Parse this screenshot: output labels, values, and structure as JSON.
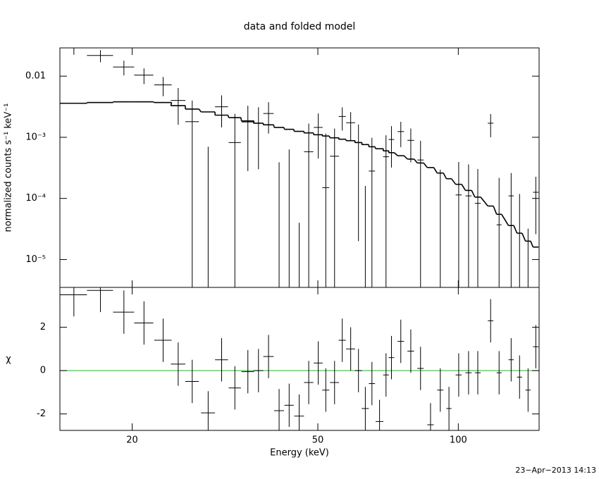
{
  "chart_data": [
    {
      "type": "errorbar",
      "title": "data and folded model",
      "ylabel": "normalized counts s⁻¹ keV⁻¹",
      "log_y": true,
      "ylim": [
        3.5e-06,
        0.029
      ],
      "yticks": [
        0.01,
        {
          "value": 0.001,
          "label": "10⁻³"
        },
        {
          "value": 0.0001,
          "label": "10⁻⁴"
        },
        {
          "value": 1e-05,
          "label": "10⁻⁵"
        }
      ],
      "x": [
        15.0,
        17.1,
        19.2,
        21.2,
        23.3,
        25.1,
        26.9,
        29.1,
        31.1,
        33.2,
        35.4,
        37.3,
        39.2,
        41.3,
        43.4,
        45.6,
        47.8,
        50.1,
        52.0,
        54.3,
        56.4,
        58.8,
        61.1,
        63.2,
        65.3,
        67.8,
        70.0,
        71.9,
        75.3,
        79.1,
        83.0,
        87.2,
        91.5,
        95.5,
        100.2,
        105.2,
        110.1,
        117.3,
        122.3,
        129.8,
        135.3,
        141.1,
        146.6
      ],
      "xerr": [
        1.0,
        1.1,
        1.0,
        1.0,
        1.0,
        0.9,
        0.9,
        1.0,
        1.0,
        1.0,
        1.1,
        0.9,
        1.0,
        1.0,
        1.0,
        1.1,
        1.1,
        1.1,
        0.9,
        1.2,
        1.0,
        1.3,
        1.1,
        1.1,
        1.0,
        1.3,
        1.0,
        1.0,
        1.2,
        1.3,
        1.3,
        1.4,
        1.4,
        1.2,
        1.5,
        1.6,
        1.6,
        1.6,
        1.5,
        1.7,
        1.7,
        1.8,
        2.0
      ],
      "values": [
        0.0299,
        0.0218,
        0.0141,
        0.0104,
        0.0072,
        0.004,
        0.0018,
        -0.0013,
        0.00315,
        0.00082,
        0.00178,
        0.0017,
        0.00245,
        -0.00086,
        -0.00057,
        -0.00106,
        0.00058,
        0.00145,
        0.00015,
        0.00049,
        0.00219,
        0.00173,
        0.00082,
        -0.00064,
        0.00028,
        -0.001,
        0.00048,
        0.00092,
        0.00124,
        0.00089,
        0.000425,
        -0.00068,
        -5.5e-05,
        -0.000315,
        0.000114,
        0.00011,
        8.3e-05,
        0.0017,
        3.7e-05,
        0.00011,
        -1.2e-05,
        -8.8e-05,
        0.000126
      ],
      "errors": [
        0.0075,
        0.0049,
        0.0038,
        0.003,
        0.0025,
        0.0024,
        0.0022,
        0.002,
        0.0017,
        0.0016,
        0.0015,
        0.0014,
        0.0013,
        0.00125,
        0.0012,
        0.0011,
        0.0011,
        0.001,
        0.001,
        0.0009,
        0.0009,
        0.00085,
        0.0008,
        0.0008,
        0.0007,
        0.0007,
        0.0006,
        0.0006,
        0.00055,
        0.0005,
        0.00045,
        0.0004,
        0.00035,
        0.0003,
        0.00028,
        0.00025,
        0.00022,
        0.0007,
        0.00018,
        0.00015,
        0.00013,
        0.00012,
        0.0001
      ],
      "model": [
        0.0036,
        0.0037,
        0.0038,
        0.0038,
        0.0037,
        0.0033,
        0.0029,
        0.0026,
        0.0023,
        0.0021,
        0.00185,
        0.0017,
        0.0016,
        0.00145,
        0.00135,
        0.00125,
        0.00118,
        0.0011,
        0.00105,
        0.00098,
        0.00093,
        0.00088,
        0.00082,
        0.00076,
        0.0007,
        0.00065,
        0.0006,
        0.00056,
        0.0005,
        0.00044,
        0.00038,
        0.00032,
        0.00026,
        0.00021,
        0.00017,
        0.000135,
        0.000105,
        7.5e-05,
        5.5e-05,
        3.6e-05,
        2.7e-05,
        2e-05,
        1.6e-05
      ]
    },
    {
      "type": "residual",
      "xlabel": "Energy (keV)",
      "ylabel": "χ",
      "log_x": true,
      "xlim": [
        14,
        149
      ],
      "xticks": [
        20,
        50,
        100
      ],
      "ylim": [
        -2.76,
        3.84
      ],
      "yticks": [
        -2,
        0,
        2
      ],
      "values": [
        3.5,
        3.7,
        2.7,
        2.2,
        1.4,
        0.3,
        -0.5,
        -1.95,
        0.5,
        -0.8,
        -0.05,
        0.0,
        0.65,
        -1.85,
        -1.6,
        -2.1,
        -0.55,
        0.35,
        -0.9,
        -0.55,
        1.4,
        1.0,
        0.0,
        -1.75,
        -0.6,
        -2.35,
        -0.2,
        0.6,
        1.35,
        0.9,
        0.1,
        -2.5,
        -0.9,
        -1.75,
        -0.2,
        -0.1,
        -0.1,
        2.3,
        -0.1,
        0.5,
        -0.3,
        -0.9,
        1.1
      ],
      "errors": [
        1,
        1,
        1,
        1,
        1,
        1,
        1,
        1,
        1,
        1,
        1,
        1,
        1,
        1,
        1,
        1,
        1,
        1,
        1,
        1,
        1,
        1,
        1,
        1,
        1,
        1,
        1,
        1,
        1,
        1,
        1,
        1,
        1,
        1,
        1,
        1,
        1,
        1,
        1,
        1,
        1,
        1,
        1
      ],
      "reference_line": 0,
      "reference_color": "#00cc00"
    }
  ],
  "timestamp": "23−Apr−2013 14:13"
}
